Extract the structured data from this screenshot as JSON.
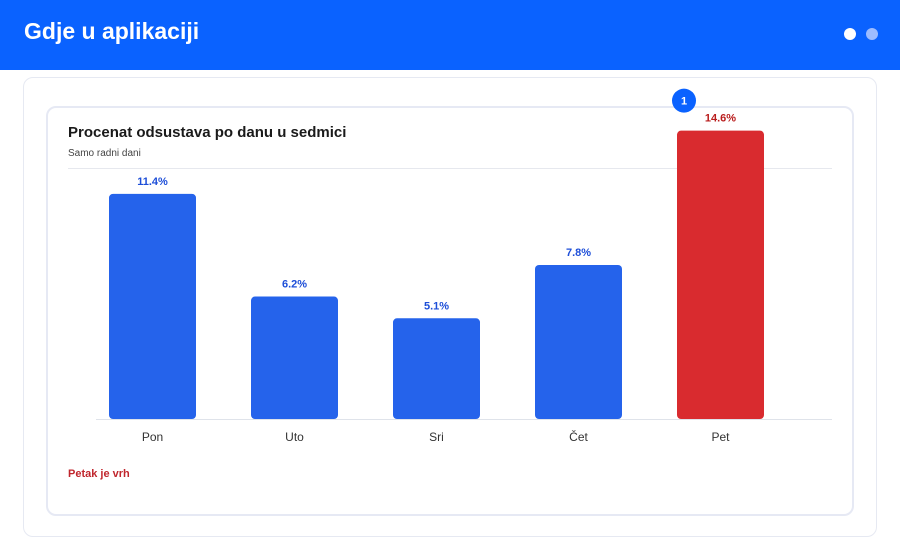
{
  "header": {
    "title": "Gdje u aplikaciji",
    "dots": [
      {
        "color": "#ffffff",
        "state": "active"
      },
      {
        "color": "#9dbcff",
        "state": "inactive"
      }
    ]
  },
  "colors": {
    "header_bg": "#0a62ff",
    "bar_default": "#2563eb",
    "bar_highlight": "#d92b2f",
    "label_default": "#1d4ed8",
    "label_highlight": "#b91c1c",
    "marker": "#0a62ff"
  },
  "chart_data": {
    "type": "bar",
    "title": "Procenat odsustava po danu u sedmici",
    "subtitle": "Samo radni dani",
    "xlabel": "",
    "ylabel": "",
    "categories": [
      "Pon",
      "Uto",
      "Sri",
      "Čet",
      "Pet"
    ],
    "values": [
      11.4,
      6.2,
      5.1,
      7.8,
      14.6
    ],
    "value_labels": [
      "11.4%",
      "6.2%",
      "5.1%",
      "7.8%",
      "14.6%"
    ],
    "highlight_index": 4,
    "ylim": [
      0,
      16
    ],
    "grid": false,
    "annotations": [
      {
        "text": "1",
        "category": "Pet",
        "shape": "circle-marker"
      }
    ]
  },
  "note": {
    "text": "Petak je vrh"
  }
}
